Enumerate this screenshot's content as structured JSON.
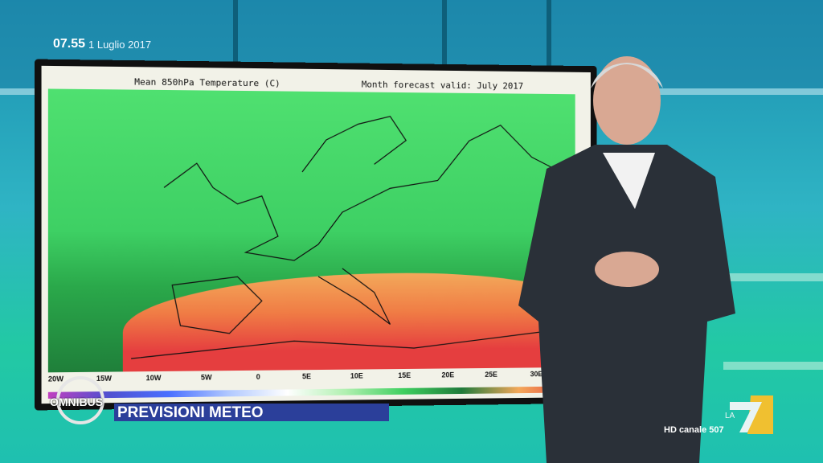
{
  "overlay": {
    "time": "07.55",
    "date": "1 Luglio 2017",
    "show_logo": "OMNIBUS",
    "banner": "PREVISIONI METEO",
    "channel_logo": "LA 7",
    "channel_info": "HD canale 507"
  },
  "map": {
    "title_left": "Mean 850hPa Temperature (C)",
    "title_right": "Month forecast valid: July 2017",
    "longitude_labels": [
      "20W",
      "15W",
      "10W",
      "5W",
      "0",
      "5E",
      "10E",
      "15E",
      "20E",
      "25E",
      "30E"
    ],
    "colors": {
      "cool": "#3ed064",
      "dark_green": "#1f7f3a",
      "orange": "#f3a85a",
      "red": "#e53e3f"
    }
  },
  "colors": {
    "banner": "#2b3f9a",
    "studio": "#2fb4c4"
  }
}
